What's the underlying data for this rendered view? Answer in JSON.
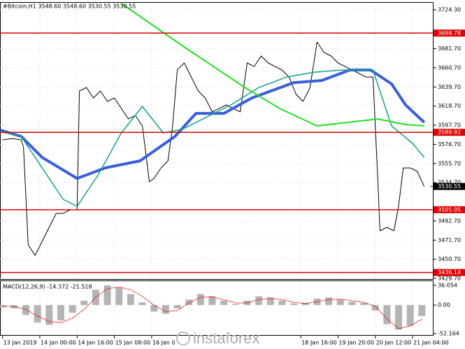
{
  "chart_data": [
    {
      "type": "line",
      "title": "#Bitcoin,H1  3548.60 3548.60 3530.55 3530.55",
      "xlim": [
        -23.1,
        163
      ],
      "ylim": [
        3428.2,
        3732.0
      ],
      "grid": true,
      "xticks": [
        {
          "value": -22,
          "label": "13 Jan 2019"
        },
        {
          "value": -6,
          "label": "14 Jan 00:00"
        },
        {
          "value": 10,
          "label": "14 Jan 16:00"
        },
        {
          "value": 26,
          "label": "15 Jan 08:00"
        },
        {
          "value": 42,
          "label": "16 Jan 0"
        },
        {
          "value": 106,
          "label": "18 Jan 16:00"
        },
        {
          "value": 122,
          "label": "19 Jan 20:00"
        },
        {
          "value": 138,
          "label": "20 Jan 12:00"
        },
        {
          "value": 154,
          "label": "21 Jan 04:00"
        }
      ],
      "yticks": [
        {
          "value": 3724.3,
          "label": "3724.30"
        },
        {
          "value": 3681.7,
          "label": "3681.70"
        },
        {
          "value": 3660.7,
          "label": "3660.70"
        },
        {
          "value": 3639.7,
          "label": "3639.70"
        },
        {
          "value": 3618.7,
          "label": "3618.70"
        },
        {
          "value": 3597.7,
          "label": "3597.70"
        },
        {
          "value": 3576.7,
          "label": "3576.70"
        },
        {
          "value": 3555.7,
          "label": "3555.70"
        },
        {
          "value": 3534.7,
          "label": "3534.70"
        },
        {
          "value": 3492.7,
          "label": "3492.70"
        },
        {
          "value": 3471.7,
          "label": "3471.70"
        },
        {
          "value": 3450.7,
          "label": "3450.70"
        },
        {
          "value": 3429.7,
          "label": "3429.70"
        }
      ],
      "levels": {
        "color": "#e00000",
        "lines": [
          {
            "value": 3698.78,
            "label": "3698.78"
          },
          {
            "value": 3589.92,
            "label": "3589.92"
          },
          {
            "value": 3505.05,
            "label": "3505.05"
          },
          {
            "value": 3436.14,
            "label": "3436.14"
          }
        ]
      },
      "last": {
        "value": 3530.55,
        "label": "3530.55"
      },
      "series": [
        {
          "color": "#000000",
          "width": 1,
          "x": [
            -22,
            -18,
            -14,
            -13,
            -11,
            -8,
            -5,
            -2,
            1,
            4,
            7,
            10,
            11,
            14,
            17,
            20,
            23,
            26,
            29,
            32,
            35,
            38,
            41,
            43,
            46,
            49,
            51,
            53,
            56,
            59,
            62,
            65,
            68,
            71,
            74,
            77,
            80,
            83,
            86,
            89,
            92,
            95,
            98,
            101,
            104,
            107,
            110,
            113,
            116,
            119,
            122,
            125,
            128,
            131,
            134,
            137,
            139,
            140,
            143,
            146,
            148,
            150,
            153,
            156,
            159
          ],
          "values": [
            3581.6,
            3583.1,
            3581.6,
            3573.9,
            3466.5,
            3454.9,
            3470.4,
            3485.7,
            3501.0,
            3501.0,
            3504.9,
            3504.9,
            3635.3,
            3639.1,
            3627.6,
            3635.3,
            3623.8,
            3627.6,
            3616.1,
            3604.6,
            3608.4,
            3597.0,
            3535.6,
            3539.4,
            3550.9,
            3558.6,
            3597.0,
            3658.3,
            3666.0,
            3650.6,
            3635.3,
            3627.6,
            3612.3,
            3616.1,
            3620.0,
            3616.1,
            3612.3,
            3666.0,
            3662.1,
            3673.7,
            3666.0,
            3662.1,
            3658.3,
            3650.6,
            3631.5,
            3623.8,
            3639.1,
            3689.0,
            3677.5,
            3673.7,
            3666.0,
            3662.1,
            3658.3,
            3654.5,
            3650.6,
            3650.6,
            3543.2,
            3481.9,
            3485.7,
            3481.9,
            3508.7,
            3550.9,
            3550.9,
            3547.1,
            3530.55
          ]
        },
        {
          "color": "#3a5fd9",
          "width": 4,
          "x": [
            -23,
            -14,
            -5,
            10,
            22,
            37,
            52,
            61,
            73,
            85,
            103,
            115,
            127,
            136,
            145,
            151,
            159
          ],
          "values": [
            3592.3,
            3585.4,
            3562.4,
            3539.4,
            3550.9,
            3558.6,
            3585.4,
            3610.7,
            3610.7,
            3627.6,
            3644.5,
            3646.8,
            3658.3,
            3658.3,
            3643.0,
            3620.0,
            3600.8
          ]
        },
        {
          "color": "#14a08c",
          "width": 1.5,
          "x": [
            -23,
            -14,
            -5,
            4,
            10,
            19,
            29,
            38,
            47,
            55,
            64,
            76,
            88,
            100,
            112,
            124,
            137,
            141,
            145,
            154,
            159
          ],
          "values": [
            3590.8,
            3585.4,
            3550.9,
            3516.4,
            3508.7,
            3543.2,
            3589.3,
            3618.4,
            3589.3,
            3593.1,
            3604.6,
            3620.0,
            3639.1,
            3650.6,
            3656.0,
            3658.3,
            3658.3,
            3627.6,
            3597.0,
            3577.8,
            3562.4
          ]
        },
        {
          "color": "#22dd22",
          "width": 2,
          "x": [
            29,
            55,
            82,
            97,
            113,
            139,
            151,
            159
          ],
          "values": [
            3731.2,
            3685.2,
            3639.1,
            3616.1,
            3597.0,
            3604.6,
            3598.5,
            3597.0
          ]
        }
      ]
    },
    {
      "type": "macd",
      "title": "MACD(12,26,9) -14.372 -21.518",
      "ylim": [
        -56.0,
        43.7
      ],
      "yticks": [
        36.054,
        {
          "value": 0,
          "label": "0.00"
        },
        -52.164
      ],
      "x": [
        -22,
        -17,
        -12,
        -7,
        -2,
        3,
        8,
        13,
        18,
        23,
        28,
        33,
        38,
        43,
        48,
        53,
        58,
        63,
        68,
        73,
        78,
        83,
        88,
        93,
        98,
        103,
        108,
        113,
        118,
        123,
        128,
        133,
        138,
        143,
        148,
        153,
        158
      ],
      "series": [
        {
          "type": "histogram",
          "color": "#b4b4b4",
          "values": [
            -4,
            -6,
            -18,
            -32,
            -36,
            -28,
            -14,
            8,
            28,
            36,
            32,
            20,
            5,
            -12,
            -16,
            -6,
            10,
            20,
            16,
            8,
            2,
            8,
            16,
            14,
            8,
            3,
            4,
            12,
            14,
            10,
            6,
            4,
            -10,
            -35,
            -45,
            -38,
            -20
          ]
        },
        {
          "type": "signal",
          "color": "#e00000",
          "values": [
            -2,
            -3,
            -8,
            -20,
            -30,
            -32,
            -24,
            -8,
            14,
            30,
            33,
            28,
            16,
            0,
            -12,
            -10,
            4,
            14,
            15,
            10,
            4,
            4,
            10,
            12,
            10,
            5,
            3,
            6,
            10,
            11,
            8,
            5,
            -2,
            -25,
            -43,
            -38,
            -26
          ]
        }
      ]
    }
  ],
  "watermark": "instaforex"
}
